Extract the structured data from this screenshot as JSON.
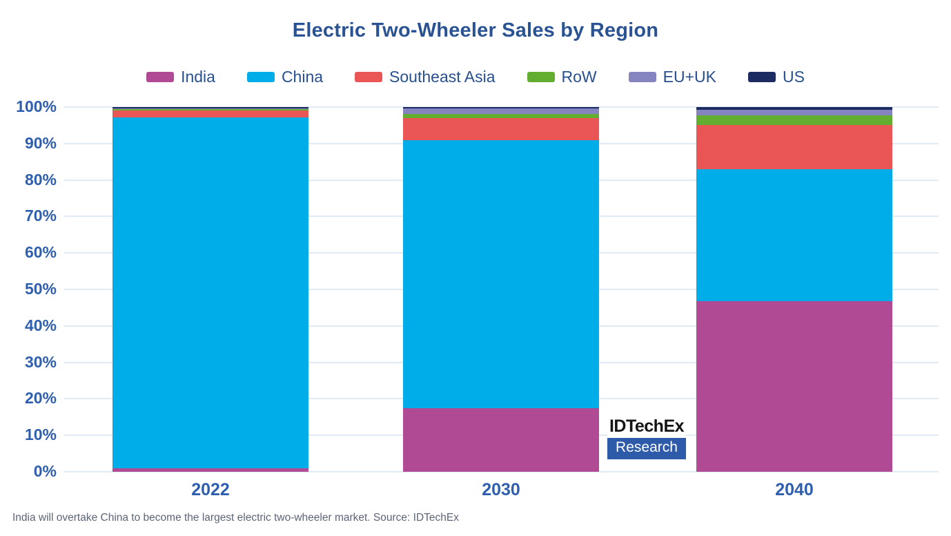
{
  "title": "Electric Two-Wheeler Sales by Region",
  "caption": "India will overtake China to become the largest electric two-wheeler market. Source: IDTechEx",
  "logo": {
    "line1": "IDTechEx",
    "line2": "Research"
  },
  "theme": {
    "title_color": "#2a5394",
    "axis_label_color": "#2e5fae",
    "legend_label_color": "#274f8e",
    "grid_color": "#dfeaf5",
    "caption_color": "#5b6476",
    "logo_box_blue": "#2d5ba9",
    "background": "#ffffff"
  },
  "chart_data": {
    "type": "bar",
    "stacked": true,
    "units": "percent",
    "title": "Electric Two-Wheeler Sales by Region",
    "xlabel": "",
    "ylabel": "",
    "categories": [
      "2022",
      "2030",
      "2040"
    ],
    "series": [
      {
        "name": "India",
        "color": "#b14a94",
        "values": [
          1.0,
          17.4,
          46.8
        ]
      },
      {
        "name": "China",
        "color": "#00ade8",
        "values": [
          96.1,
          73.6,
          36.2
        ]
      },
      {
        "name": "Southeast Asia",
        "color": "#ea5655",
        "values": [
          1.9,
          6.0,
          12.0
        ]
      },
      {
        "name": "RoW",
        "color": "#63ae31",
        "values": [
          0.4,
          1.2,
          2.7
        ]
      },
      {
        "name": "EU+UK",
        "color": "#8583c0",
        "values": [
          0.3,
          1.4,
          1.5
        ]
      },
      {
        "name": "US",
        "color": "#1d2b63",
        "values": [
          0.3,
          0.4,
          0.8
        ]
      }
    ],
    "ylim": [
      0,
      100
    ],
    "y_ticks": [
      "0%",
      "10%",
      "20%",
      "30%",
      "40%",
      "50%",
      "60%",
      "70%",
      "80%",
      "90%",
      "100%"
    ],
    "grid": "horizontal",
    "legend_position": "top"
  }
}
